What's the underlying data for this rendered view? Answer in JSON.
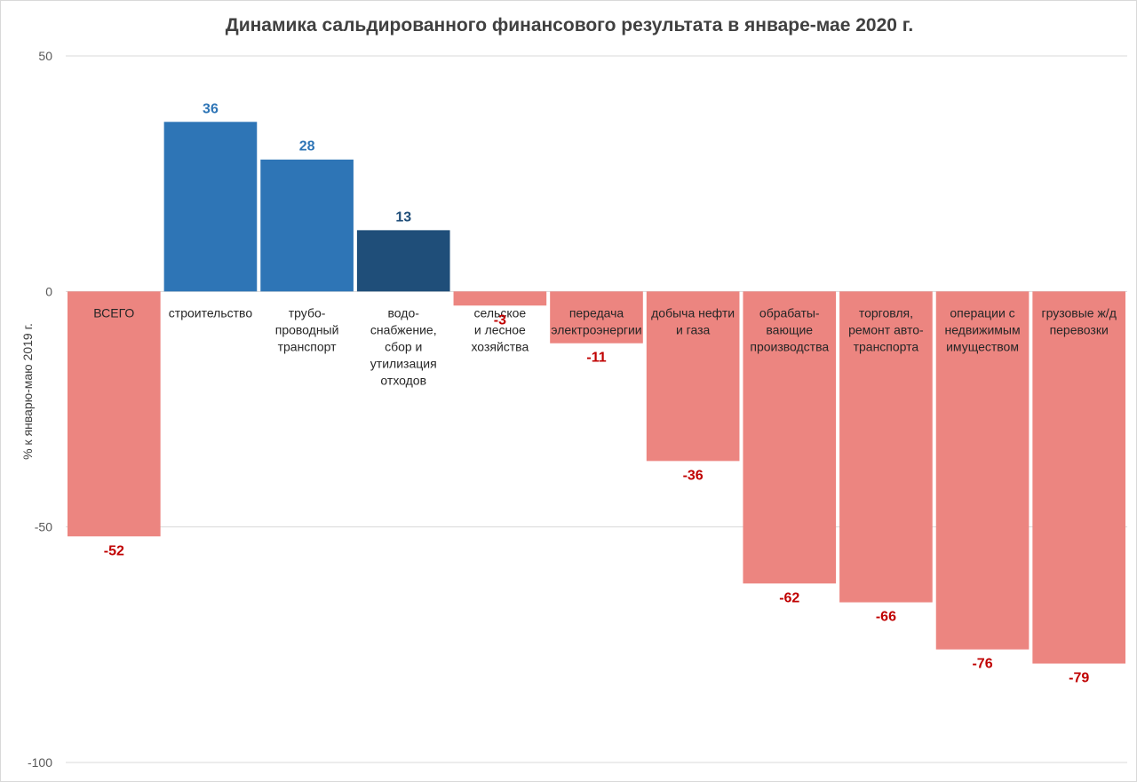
{
  "chart_data": {
    "type": "bar",
    "title": "Динамика сальдированного финансового результата в январе-мае 2020 г.",
    "xlabel": "",
    "ylabel": "% к январю-маю 2019 г.",
    "ylim": [
      -100,
      50
    ],
    "yticks": [
      50,
      0,
      -50,
      -100
    ],
    "grid": true,
    "categories": [
      "ВСЕГО",
      "строительство",
      "трубо-\nпроводный\nтранспорт",
      "водо-\nснабжение,\nсбор и\nутилизация\nотходов",
      "сельское\nи лесное\nхозяйства",
      "передача\nэлектроэнергии",
      "добыча нефти\nи газа",
      "обрабаты-\nвающие\nпроизводства",
      "торговля,\nремонт авто-\nтранспорта",
      "операции с\nнедвижимым\nимуществом",
      "грузовые ж/д\nперевозки"
    ],
    "values": [
      -52,
      36,
      28,
      13,
      -3,
      -11,
      -36,
      -62,
      -66,
      -76,
      -79
    ],
    "value_labels": [
      "-52",
      "36",
      "28",
      "13",
      "-3",
      "-11",
      "-36",
      "-62",
      "-66",
      "-76",
      "-79"
    ],
    "bar_colors": [
      "#ec8580",
      "#2e75b6",
      "#2e75b6",
      "#1f4e79",
      "#ec8580",
      "#ec8580",
      "#ec8580",
      "#ec8580",
      "#ec8580",
      "#ec8580",
      "#ec8580"
    ],
    "label_colors": [
      "#c00000",
      "#2e75b6",
      "#2e75b6",
      "#1f4e79",
      "#c00000",
      "#c00000",
      "#c00000",
      "#c00000",
      "#c00000",
      "#c00000",
      "#c00000"
    ]
  }
}
